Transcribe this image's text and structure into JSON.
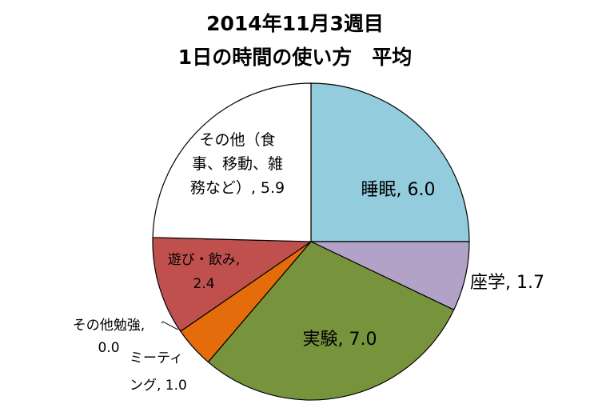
{
  "chart_data": {
    "type": "pie",
    "title": [
      "2014年11月3週目",
      "1日の時間の使い方　平均"
    ],
    "slices": [
      {
        "name": "睡眠",
        "value": 6.0,
        "color": "#93CDDD",
        "label": [
          "睡眠, 6.0"
        ]
      },
      {
        "name": "座学",
        "value": 1.7,
        "color": "#B3A2C7",
        "label": [
          "座学, 1.7"
        ]
      },
      {
        "name": "実験",
        "value": 7.0,
        "color": "#77933C",
        "label": [
          "実験, 7.0"
        ]
      },
      {
        "name": "ミーティング",
        "value": 1.0,
        "color": "#E46C0A",
        "label": [
          "ミーティ",
          "ング, 1.0"
        ]
      },
      {
        "name": "その他勉強",
        "value": 0.0,
        "color": "#4F81BD",
        "label": [
          "その他勉強,",
          "0.0"
        ]
      },
      {
        "name": "遊び・飲み",
        "value": 2.4,
        "color": "#C0504D",
        "label": [
          "遊び・飲み,",
          "2.4"
        ]
      },
      {
        "name": "その他（食事、移動、雑務など）",
        "value": 5.9,
        "color": "#FFFFFF",
        "label": [
          "その他（食",
          "事、移動、雑",
          "務など）, 5.9"
        ]
      }
    ],
    "legend": "none"
  }
}
